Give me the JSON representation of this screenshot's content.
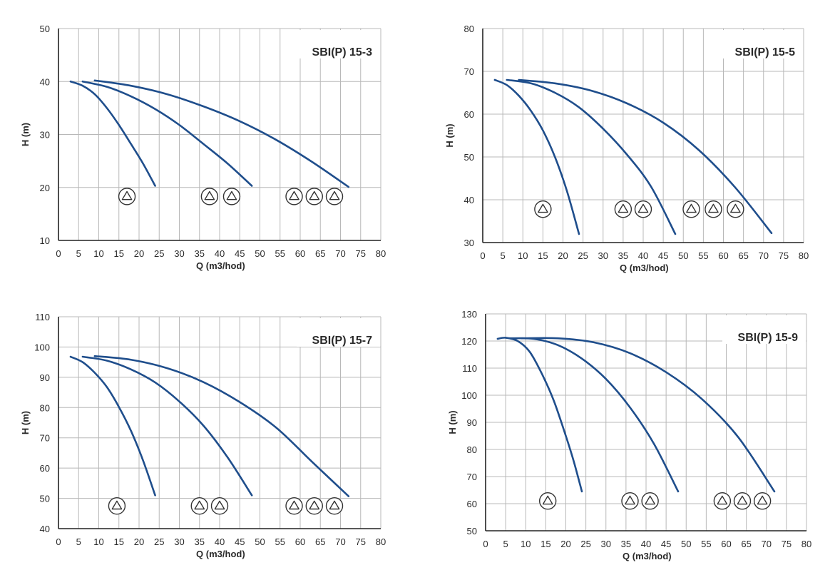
{
  "chart_data": [
    {
      "type": "line",
      "title": "SBI(P) 15-3",
      "xlabel": "Q (m3/hod)",
      "ylabel": "H (m)",
      "xlim": [
        0,
        80
      ],
      "ylim": [
        10,
        50
      ],
      "x_ticks": [
        0,
        5,
        10,
        15,
        20,
        25,
        30,
        35,
        40,
        45,
        50,
        55,
        60,
        65,
        70,
        75,
        80
      ],
      "y_ticks": [
        10,
        20,
        30,
        40,
        50
      ],
      "grid": true,
      "series": [
        {
          "x": [
            3,
            6,
            9,
            12,
            15,
            18,
            21,
            24
          ],
          "y": [
            40.0,
            39.2,
            37.6,
            35.0,
            31.8,
            28.2,
            24.5,
            20.3
          ]
        },
        {
          "x": [
            6,
            12,
            18,
            24,
            30,
            36,
            42,
            48
          ],
          "y": [
            40.0,
            39.0,
            37.2,
            34.8,
            31.8,
            28.2,
            24.5,
            20.3
          ]
        },
        {
          "x": [
            9,
            18,
            27,
            36,
            45,
            54,
            63,
            72
          ],
          "y": [
            40.2,
            39.2,
            37.6,
            35.3,
            32.5,
            29.0,
            24.8,
            20.1
          ]
        }
      ],
      "stage_markers": [
        {
          "x": 17,
          "y": 18.3,
          "count": 1
        },
        {
          "x": 37.5,
          "y": 18.3,
          "count": 2
        },
        {
          "x": 43,
          "y": 18.3,
          "count": 2
        },
        {
          "x": 58.5,
          "y": 18.3,
          "count": 3
        },
        {
          "x": 63.5,
          "y": 18.3,
          "count": 3
        },
        {
          "x": 68.5,
          "y": 18.3,
          "count": 3
        }
      ]
    },
    {
      "type": "line",
      "title": "SBI(P) 15-5",
      "xlabel": "Q (m3/hod)",
      "ylabel": "H (m)",
      "xlim": [
        0,
        80
      ],
      "ylim": [
        30,
        80
      ],
      "x_ticks": [
        0,
        5,
        10,
        15,
        20,
        25,
        30,
        35,
        40,
        45,
        50,
        55,
        60,
        65,
        70,
        75,
        80
      ],
      "y_ticks": [
        30,
        40,
        50,
        60,
        70,
        80
      ],
      "grid": true,
      "series": [
        {
          "x": [
            3,
            6,
            9,
            12,
            15,
            18,
            21,
            24
          ],
          "y": [
            68.0,
            66.8,
            64.3,
            60.8,
            56.2,
            50.0,
            42.0,
            32.0
          ]
        },
        {
          "x": [
            6,
            12,
            18,
            24,
            30,
            36,
            42,
            48
          ],
          "y": [
            68.0,
            67.2,
            65.0,
            61.6,
            56.6,
            50.5,
            43.0,
            32.0
          ]
        },
        {
          "x": [
            9,
            18,
            27,
            36,
            45,
            54,
            63,
            72
          ],
          "y": [
            68.0,
            67.2,
            65.5,
            62.5,
            58.0,
            51.5,
            42.8,
            32.2
          ]
        }
      ],
      "stage_markers": [
        {
          "x": 15,
          "y": 37.8,
          "count": 1
        },
        {
          "x": 35,
          "y": 37.8,
          "count": 2
        },
        {
          "x": 40,
          "y": 37.8,
          "count": 2
        },
        {
          "x": 52,
          "y": 37.8,
          "count": 3
        },
        {
          "x": 57.5,
          "y": 37.8,
          "count": 3
        },
        {
          "x": 63,
          "y": 37.8,
          "count": 3
        }
      ]
    },
    {
      "type": "line",
      "title": "SBI(P) 15-7",
      "xlabel": "Q (m3/hod)",
      "ylabel": "H (m)",
      "xlim": [
        0,
        80
      ],
      "ylim": [
        40,
        110
      ],
      "x_ticks": [
        0,
        5,
        10,
        15,
        20,
        25,
        30,
        35,
        40,
        45,
        50,
        55,
        60,
        65,
        70,
        75,
        80
      ],
      "y_ticks": [
        40,
        50,
        60,
        70,
        80,
        90,
        100,
        110
      ],
      "grid": true,
      "series": [
        {
          "x": [
            3,
            6,
            9,
            12,
            15,
            18,
            21,
            24
          ],
          "y": [
            96.8,
            95.0,
            91.5,
            86.8,
            80.2,
            72.3,
            62.5,
            51.0
          ]
        },
        {
          "x": [
            6,
            12,
            18,
            24,
            30,
            36,
            42,
            48
          ],
          "y": [
            96.8,
            95.5,
            92.6,
            88.3,
            82.0,
            74.0,
            63.5,
            51.0
          ]
        },
        {
          "x": [
            9,
            18,
            27,
            36,
            45,
            54,
            63,
            72
          ],
          "y": [
            97.0,
            95.8,
            93.0,
            88.4,
            81.8,
            73.4,
            62.0,
            50.7
          ]
        }
      ],
      "stage_markers": [
        {
          "x": 14.5,
          "y": 47.5,
          "count": 1
        },
        {
          "x": 35,
          "y": 47.5,
          "count": 2
        },
        {
          "x": 40,
          "y": 47.5,
          "count": 2
        },
        {
          "x": 58.5,
          "y": 47.5,
          "count": 3
        },
        {
          "x": 63.5,
          "y": 47.5,
          "count": 3
        },
        {
          "x": 68.5,
          "y": 47.5,
          "count": 3
        }
      ]
    },
    {
      "type": "line",
      "title": "SBI(P) 15-9",
      "xlabel": "Q (m3/hod)",
      "ylabel": "H (m)",
      "xlim": [
        0,
        80
      ],
      "ylim": [
        50,
        130
      ],
      "x_ticks": [
        0,
        5,
        10,
        15,
        20,
        25,
        30,
        35,
        40,
        45,
        50,
        55,
        60,
        65,
        70,
        75,
        80
      ],
      "y_ticks": [
        50,
        60,
        70,
        80,
        90,
        100,
        110,
        120,
        130
      ],
      "grid": true,
      "series": [
        {
          "x": [
            3,
            5,
            8,
            11,
            14,
            17,
            20,
            22,
            24
          ],
          "y": [
            120.8,
            121.2,
            120.0,
            116.0,
            108.0,
            98.0,
            85.0,
            75.5,
            64.5
          ]
        },
        {
          "x": [
            6,
            12,
            18,
            24,
            30,
            36,
            42,
            48
          ],
          "y": [
            121.0,
            120.8,
            118.5,
            113.5,
            106.0,
            95.5,
            82.0,
            64.5
          ]
        },
        {
          "x": [
            9,
            18,
            27,
            36,
            45,
            54,
            63,
            72
          ],
          "y": [
            121.0,
            121.0,
            119.5,
            115.5,
            108.5,
            98.5,
            84.5,
            64.5
          ]
        }
      ],
      "stage_markers": [
        {
          "x": 15.5,
          "y": 61.0,
          "count": 1
        },
        {
          "x": 36,
          "y": 61.0,
          "count": 2
        },
        {
          "x": 41,
          "y": 61.0,
          "count": 2
        },
        {
          "x": 59,
          "y": 61.0,
          "count": 3
        },
        {
          "x": 64,
          "y": 61.0,
          "count": 3
        },
        {
          "x": 69,
          "y": 61.0,
          "count": 3
        }
      ]
    }
  ],
  "colors": {
    "curve": "#1f4e8c",
    "grid": "#b8b8b8",
    "axis": "#222222",
    "marker": "#333333",
    "text": "#2a2a2a"
  }
}
